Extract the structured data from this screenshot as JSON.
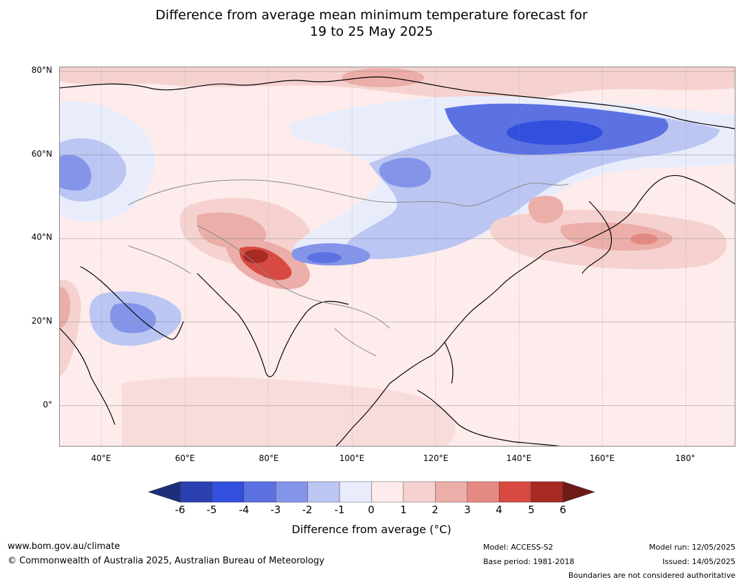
{
  "title": {
    "line1": "Difference from average mean minimum temperature forecast for",
    "line2": "19 to 25 May 2025"
  },
  "map": {
    "lat_labels": [
      "80°N",
      "60°N",
      "40°N",
      "20°N",
      "0°"
    ],
    "lon_labels": [
      "40°E",
      "60°E",
      "80°E",
      "100°E",
      "120°E",
      "140°E",
      "160°E",
      "180°"
    ],
    "lat_values": [
      80,
      60,
      40,
      20,
      0
    ],
    "lon_values": [
      40,
      60,
      80,
      100,
      120,
      140,
      160,
      180
    ],
    "lat_range": [
      -10,
      81
    ],
    "lon_range": [
      30,
      192
    ]
  },
  "colorbar": {
    "ticks": [
      "-6",
      "-5",
      "-4",
      "-3",
      "-2",
      "-1",
      "0",
      "1",
      "2",
      "3",
      "4",
      "5",
      "6"
    ],
    "colors": [
      "#1f2e7a",
      "#2a3fb0",
      "#3250dd",
      "#5c72e3",
      "#8495e9",
      "#bcc6f3",
      "#e9edfb",
      "#fdeceb",
      "#f5d2d0",
      "#ecaea9",
      "#e58a83",
      "#d84a41",
      "#a72a24",
      "#6e1b17"
    ],
    "label": "Difference from average (°C)"
  },
  "footer": {
    "website": "www.bom.gov.au/climate",
    "copyright": "© Commonwealth of Australia 2025, Australian Bureau of Meteorology",
    "model": "Model: ACCESS-S2",
    "base_period": "Base period: 1981-2018",
    "model_run": "Model run: 12/05/2025",
    "issued": "Issued: 14/05/2025",
    "disclaimer": "Boundaries are not considered authoritative"
  }
}
